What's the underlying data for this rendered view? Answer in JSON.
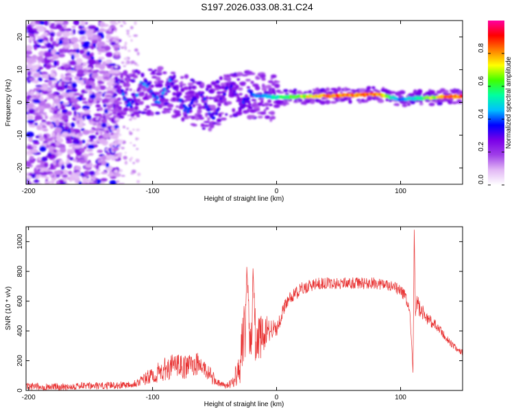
{
  "title": "S197.2026.033.08.31.C24",
  "chart_data": [
    {
      "type": "heatmap",
      "name": "spectrogram",
      "xlabel": "Height of straight line (km)",
      "ylabel": "Frequency (Hz)",
      "xlim": [
        -202,
        150
      ],
      "ylim": [
        -25,
        25
      ],
      "xticks": [
        -200,
        -100,
        0,
        100
      ],
      "xtick_labels": [
        "-200",
        "-100",
        "0",
        "100"
      ],
      "yticks": [
        20,
        10,
        0,
        -10,
        -20
      ],
      "ytick_labels": [
        "20",
        "10",
        "0",
        "-10",
        "-20"
      ],
      "colorbar": {
        "label": "Normalized spectral amplitude",
        "range": [
          0,
          1
        ],
        "ticks": [
          0,
          0.2,
          0.4,
          0.6,
          0.8
        ],
        "tick_labels": [
          "0.0",
          "0.2",
          "0.4",
          "0.6",
          "0.8"
        ],
        "colors": [
          "#ffffff",
          "#e2b8f5",
          "#a040e8",
          "#7a00e8",
          "#0000ff",
          "#00c0ff",
          "#00ffa0",
          "#40ff00",
          "#ffff00",
          "#ff8000",
          "#ff0000",
          "#ff00a0"
        ]
      },
      "description_points": [
        {
          "x": -170,
          "f": 0,
          "amp": 0.15,
          "note": "broadband noise spread -25 to 25 Hz"
        },
        {
          "x": -125,
          "f": 2,
          "amp": 0.35
        },
        {
          "x": -90,
          "f": 4,
          "amp": 0.4
        },
        {
          "x": -55,
          "f": -2,
          "amp": 0.35
        },
        {
          "x": -35,
          "f": 3,
          "amp": 0.3
        },
        {
          "x": 0,
          "f": 1.5,
          "amp": 0.55
        },
        {
          "x": 40,
          "f": 2,
          "amp": 0.85
        },
        {
          "x": 80,
          "f": 2.5,
          "amp": 0.9
        },
        {
          "x": 100,
          "f": 1,
          "amp": 0.4
        },
        {
          "x": 140,
          "f": 1.8,
          "amp": 0.9
        }
      ]
    },
    {
      "type": "line",
      "name": "snr",
      "xlabel": "Height of straight line (km)",
      "ylabel": "SNR (10 * v/v)",
      "xlim": [
        -202,
        150
      ],
      "ylim": [
        0,
        1100
      ],
      "xticks": [
        -200,
        -100,
        0,
        100
      ],
      "xtick_labels": [
        "-200",
        "-100",
        "0",
        "100"
      ],
      "yticks": [
        0,
        200,
        400,
        600,
        800,
        1000
      ],
      "ytick_labels": [
        "0",
        "200",
        "400",
        "600",
        "800",
        "1000"
      ],
      "series": [
        {
          "name": "SNR",
          "color": "#e83030",
          "x": [
            -202,
            -190,
            -180,
            -170,
            -160,
            -150,
            -140,
            -130,
            -120,
            -112,
            -105,
            -100,
            -95,
            -90,
            -85,
            -80,
            -75,
            -70,
            -65,
            -60,
            -55,
            -50,
            -45,
            -40,
            -35,
            -30,
            -27,
            -25,
            -24,
            -22,
            -20,
            -19,
            -17,
            -15,
            -12,
            -10,
            -8,
            -5,
            -2,
            0,
            3,
            5,
            8,
            10,
            15,
            20,
            25,
            30,
            35,
            40,
            45,
            50,
            55,
            60,
            65,
            70,
            75,
            80,
            85,
            90,
            95,
            100,
            103,
            105,
            107,
            109,
            110,
            111,
            112,
            113,
            115,
            118,
            120,
            125,
            130,
            135,
            140,
            145,
            150
          ],
          "values": [
            25,
            25,
            25,
            25,
            30,
            30,
            30,
            35,
            40,
            55,
            80,
            100,
            120,
            140,
            160,
            170,
            150,
            170,
            180,
            160,
            120,
            70,
            40,
            30,
            60,
            180,
            300,
            420,
            830,
            450,
            300,
            820,
            360,
            330,
            370,
            360,
            420,
            400,
            420,
            410,
            480,
            540,
            580,
            620,
            650,
            680,
            700,
            710,
            720,
            720,
            720,
            720,
            720,
            720,
            720,
            720,
            720,
            720,
            715,
            700,
            690,
            670,
            640,
            600,
            560,
            300,
            120,
            1080,
            500,
            600,
            560,
            520,
            500,
            460,
            420,
            370,
            320,
            280,
            255
          ],
          "noise_amp": [
            25,
            25,
            25,
            25,
            25,
            25,
            25,
            25,
            25,
            30,
            50,
            60,
            70,
            80,
            80,
            80,
            80,
            80,
            80,
            70,
            60,
            40,
            20,
            20,
            40,
            140,
            240,
            200,
            0,
            200,
            160,
            0,
            160,
            160,
            140,
            120,
            100,
            80,
            60,
            50,
            50,
            45,
            45,
            45,
            45,
            45,
            45,
            40,
            40,
            40,
            40,
            40,
            40,
            40,
            40,
            40,
            40,
            40,
            40,
            40,
            40,
            40,
            40,
            40,
            40,
            0,
            0,
            0,
            0,
            60,
            60,
            50,
            50,
            40,
            35,
            30,
            25,
            20,
            20
          ]
        }
      ]
    }
  ]
}
